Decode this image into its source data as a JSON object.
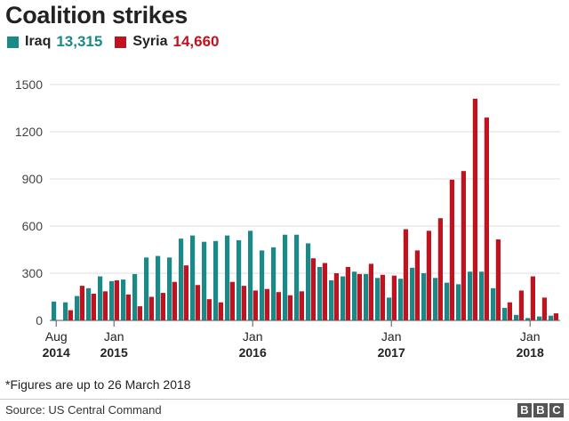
{
  "title": "Coalition strikes",
  "legend": [
    {
      "label": "Iraq",
      "total": "13,315",
      "color": "#1a8a88"
    },
    {
      "label": "Syria",
      "total": "14,660",
      "color": "#c1121f"
    }
  ],
  "note": "*Figures are up to 26 March 2018",
  "source": "Source: US Central Command",
  "logo": [
    "B",
    "B",
    "C"
  ],
  "chart_data": {
    "type": "bar",
    "grid": true,
    "ylim": [
      0,
      1500
    ],
    "yticks": [
      0,
      300,
      600,
      900,
      1200,
      1500
    ],
    "xticks": [
      {
        "index": 0,
        "line1": "Aug",
        "line2": "2014"
      },
      {
        "index": 5,
        "line1": "Jan",
        "line2": "2015"
      },
      {
        "index": 17,
        "line1": "Jan",
        "line2": "2016"
      },
      {
        "index": 29,
        "line1": "Jan",
        "line2": "2017"
      },
      {
        "index": 41,
        "line1": "Jan",
        "line2": "2018"
      }
    ],
    "categories": [
      "2014-08",
      "2014-09",
      "2014-10",
      "2014-11",
      "2014-12",
      "2015-01",
      "2015-02",
      "2015-03",
      "2015-04",
      "2015-05",
      "2015-06",
      "2015-07",
      "2015-08",
      "2015-09",
      "2015-10",
      "2015-11",
      "2015-12",
      "2016-01",
      "2016-02",
      "2016-03",
      "2016-04",
      "2016-05",
      "2016-06",
      "2016-07",
      "2016-08",
      "2016-09",
      "2016-10",
      "2016-11",
      "2016-12",
      "2017-01",
      "2017-02",
      "2017-03",
      "2017-04",
      "2017-05",
      "2017-06",
      "2017-07",
      "2017-08",
      "2017-09",
      "2017-10",
      "2017-11",
      "2017-12",
      "2018-01",
      "2018-02",
      "2018-03"
    ],
    "series": [
      {
        "name": "Iraq",
        "color": "#1a8a88",
        "values": [
          120,
          115,
          155,
          205,
          280,
          250,
          260,
          295,
          400,
          410,
          400,
          520,
          540,
          500,
          505,
          540,
          510,
          570,
          445,
          465,
          545,
          545,
          490,
          340,
          255,
          280,
          310,
          295,
          270,
          145,
          265,
          335,
          300,
          270,
          240,
          230,
          310,
          310,
          205,
          80,
          35,
          15,
          25,
          30
        ]
      },
      {
        "name": "Syria",
        "color": "#c1121f",
        "values": [
          0,
          65,
          220,
          170,
          185,
          255,
          165,
          90,
          150,
          175,
          245,
          350,
          225,
          135,
          115,
          245,
          220,
          190,
          200,
          180,
          160,
          185,
          395,
          365,
          300,
          340,
          295,
          360,
          290,
          285,
          580,
          445,
          570,
          650,
          895,
          950,
          1410,
          1290,
          515,
          115,
          190,
          280,
          145,
          45
        ]
      }
    ]
  }
}
